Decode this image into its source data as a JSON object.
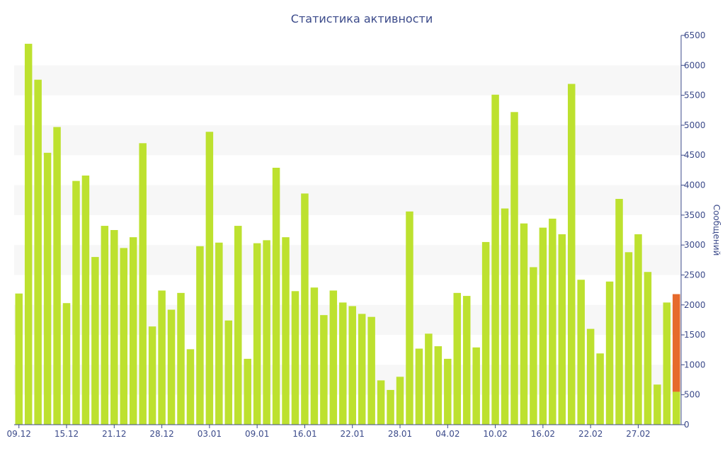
{
  "chart_data": {
    "type": "bar",
    "title": "Статистика активности",
    "xlabel": "",
    "ylabel": "Сообщений",
    "ylim": [
      0,
      6500
    ],
    "y_ticks": [
      0,
      500,
      1000,
      1500,
      2000,
      2500,
      3000,
      3500,
      4000,
      4500,
      5000,
      5500,
      6000,
      6500
    ],
    "x_tick_labels": [
      {
        "label": "09.12",
        "index": 0
      },
      {
        "label": "15.12",
        "index": 5
      },
      {
        "label": "21.12",
        "index": 10
      },
      {
        "label": "28.12",
        "index": 15
      },
      {
        "label": "03.01",
        "index": 20
      },
      {
        "label": "09.01",
        "index": 25
      },
      {
        "label": "16.01",
        "index": 30
      },
      {
        "label": "22.01",
        "index": 35
      },
      {
        "label": "28.01",
        "index": 40
      },
      {
        "label": "04.02",
        "index": 45
      },
      {
        "label": "10.02",
        "index": 50
      },
      {
        "label": "16.02",
        "index": 55
      },
      {
        "label": "22.02",
        "index": 60
      },
      {
        "label": "27.02",
        "index": 65
      }
    ],
    "grid": "alternating horizontal bands",
    "axis_position": "right",
    "colors": {
      "bar": "#bde12f",
      "highlight": "#e66a2c",
      "text": "#3b4a8a",
      "band": "#f7f7f7"
    },
    "values": [
      2190,
      6360,
      5760,
      4540,
      4970,
      2030,
      4070,
      4160,
      2800,
      3320,
      3250,
      2950,
      3130,
      4700,
      1640,
      2240,
      1920,
      2200,
      1260,
      2980,
      4890,
      3040,
      1740,
      3320,
      1100,
      3030,
      3080,
      4290,
      3130,
      2230,
      3860,
      2290,
      1830,
      2240,
      2040,
      1980,
      1850,
      1800,
      740,
      580,
      800,
      3560,
      1270,
      1520,
      1310,
      1100,
      2200,
      2150,
      1290,
      3050,
      5510,
      3610,
      5220,
      3360,
      2630,
      3290,
      3440,
      3180,
      5690,
      2420,
      1600,
      1190,
      2390,
      3770,
      2880,
      3180,
      2550,
      670,
      2040,
      2180
    ],
    "highlight": {
      "index": 69,
      "total": 2180,
      "lower": 550
    }
  }
}
